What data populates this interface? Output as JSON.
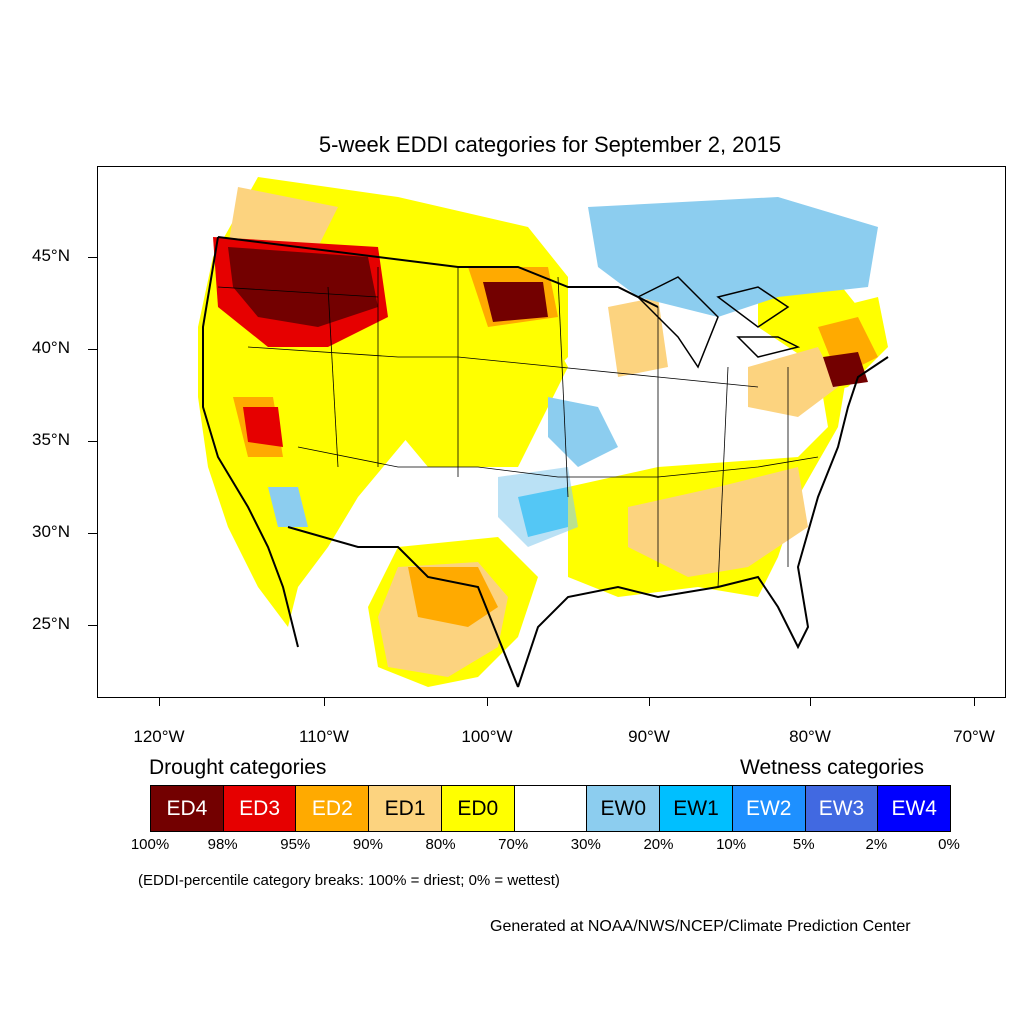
{
  "title": "5-week EDDI categories for September 2, 2015",
  "map": {
    "lat_labels": [
      "45°N",
      "40°N",
      "35°N",
      "30°N",
      "25°N"
    ],
    "lon_labels": [
      "120°W",
      "110°W",
      "100°W",
      "90°W",
      "80°W",
      "70°W"
    ],
    "lat_values": [
      45,
      40,
      35,
      30,
      25
    ],
    "lon_values": [
      -120,
      -110,
      -100,
      -90,
      -80,
      -70
    ]
  },
  "legend": {
    "drought_heading": "Drought categories",
    "wetness_heading": "Wetness categories",
    "categories": [
      {
        "label": "ED4",
        "color": "#730000",
        "text_color": "#ffffff"
      },
      {
        "label": "ED3",
        "color": "#e60000",
        "text_color": "#ffffff"
      },
      {
        "label": "ED2",
        "color": "#ffaa00",
        "text_color": "#ffffff"
      },
      {
        "label": "ED1",
        "color": "#fcd37f",
        "text_color": "#000000"
      },
      {
        "label": "ED0",
        "color": "#ffff00",
        "text_color": "#000000"
      },
      {
        "label": "",
        "color": "#ffffff",
        "text_color": "#000000"
      },
      {
        "label": "EW0",
        "color": "#8ccdef",
        "text_color": "#000000"
      },
      {
        "label": "EW1",
        "color": "#00bfff",
        "text_color": "#000000"
      },
      {
        "label": "EW2",
        "color": "#1e90ff",
        "text_color": "#ffffff"
      },
      {
        "label": "EW3",
        "color": "#4169e1",
        "text_color": "#ffffff"
      },
      {
        "label": "EW4",
        "color": "#0000ff",
        "text_color": "#ffffff"
      }
    ],
    "percentiles": [
      "100%",
      "98%",
      "95%",
      "90%",
      "80%",
      "70%",
      "30%",
      "20%",
      "10%",
      "5%",
      "2%",
      "0%"
    ]
  },
  "note": "(EDDI-percentile category breaks: 100% = driest; 0% = wettest)",
  "credit": "Generated at NOAA/NWS/NCEP/Climate Prediction Center"
}
